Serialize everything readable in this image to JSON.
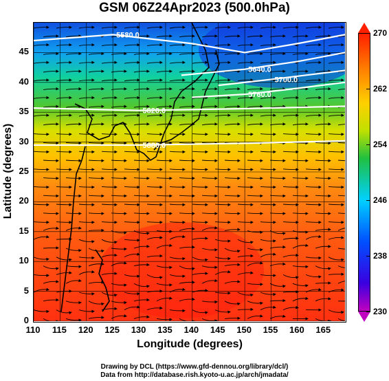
{
  "title": "GSM 06Z24Apr2023 (500.0hPa)",
  "xaxis": {
    "label": "Longitude (degrees)",
    "ticks": [
      "110",
      "115",
      "120",
      "125",
      "130",
      "135",
      "140",
      "145",
      "150",
      "155",
      "160",
      "165"
    ],
    "range": [
      110,
      169
    ]
  },
  "yaxis": {
    "label": "Latitude (degrees)",
    "ticks": [
      "0",
      "5",
      "10",
      "15",
      "20",
      "25",
      "30",
      "35",
      "40",
      "45"
    ],
    "range": [
      0,
      50
    ]
  },
  "colorbar": {
    "labels": [
      "270",
      "262",
      "254",
      "246",
      "238",
      "230"
    ],
    "range": [
      230,
      270
    ],
    "colors": [
      "#c000c0",
      "#3a00e0",
      "#0050ff",
      "#00d0ff",
      "#20c040",
      "#c0e000",
      "#ffd000",
      "#ff8000",
      "#ff2000"
    ]
  },
  "contours": [
    {
      "label": "5880.0",
      "lat_at_lon": [
        [
          110,
          29.5
        ],
        [
          130,
          29.5
        ],
        [
          150,
          29.8
        ],
        [
          169,
          30.2
        ]
      ]
    },
    {
      "label": "5820.0",
      "lat_at_lon": [
        [
          110,
          35.7
        ],
        [
          130,
          35.3
        ],
        [
          150,
          35.6
        ],
        [
          169,
          36.0
        ]
      ]
    },
    {
      "label": "5760.0",
      "lat_at_lon": [
        [
          140,
          37.5
        ],
        [
          150,
          38.0
        ],
        [
          160,
          39.0
        ],
        [
          169,
          40.0
        ]
      ]
    },
    {
      "label": "5700.0",
      "lat_at_lon": [
        [
          145,
          39.5
        ],
        [
          155,
          40.5
        ],
        [
          169,
          42.0
        ]
      ]
    },
    {
      "label": "5640.0",
      "lat_at_lon": [
        [
          138,
          41.2
        ],
        [
          150,
          42.2
        ],
        [
          160,
          43.5
        ],
        [
          169,
          45.0
        ]
      ]
    },
    {
      "label": "5580.0",
      "lat_at_lon": [
        [
          110,
          47.0
        ],
        [
          125,
          48.0
        ],
        [
          140,
          46.5
        ],
        [
          150,
          45.0
        ],
        [
          160,
          46.5
        ],
        [
          169,
          48.0
        ]
      ]
    }
  ],
  "footer": {
    "line1": "Drawing by DCL (https://www.gfd-dennou.org/library/dcl/)",
    "line2": "Data from http://database.rish.kyoto-u.ac.jp/arch/jmadata/"
  }
}
